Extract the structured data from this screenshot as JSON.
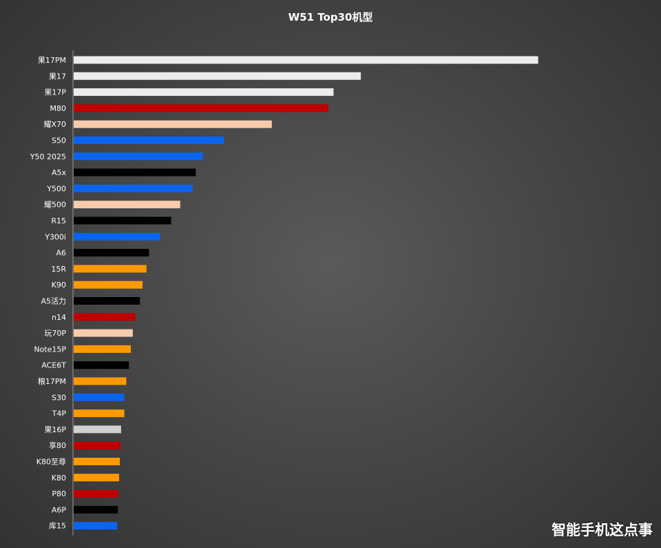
{
  "chart_data": {
    "type": "bar",
    "orientation": "horizontal",
    "title": "W51 Top30机型",
    "categories": [
      "果17PM",
      "果17",
      "果17P",
      "M80",
      "耀X70",
      "S50",
      "Y50 2025",
      "A5x",
      "Y500",
      "耀500",
      "R15",
      "Y300i",
      "A6",
      "15R",
      "K90",
      "A5活力",
      "n14",
      "玩70P",
      "Note15P",
      "ACE6T",
      "粮17PM",
      "S30",
      "T4P",
      "果16P",
      "享80",
      "K80至尊",
      "K80",
      "P80",
      "A6P",
      "库15"
    ],
    "values": [
      715,
      442,
      400,
      392,
      305,
      231,
      199,
      188,
      183,
      164,
      150,
      133,
      116,
      112,
      106,
      102,
      95,
      91,
      88,
      85,
      81,
      78,
      78,
      73,
      72,
      71,
      70,
      69,
      68,
      67
    ],
    "colors": [
      "#ececec",
      "#ececec",
      "#ececec",
      "#c00000",
      "#f8cbad",
      "#0a64f0",
      "#0a64f0",
      "#000000",
      "#0a64f0",
      "#f8cbad",
      "#000000",
      "#0a64f0",
      "#000000",
      "#ff9900",
      "#ff9900",
      "#000000",
      "#c00000",
      "#f8cbad",
      "#ff9900",
      "#000000",
      "#ff9900",
      "#0a64f0",
      "#ff9900",
      "#d0d0d0",
      "#c00000",
      "#ff9900",
      "#ff9900",
      "#c00000",
      "#000000",
      "#0a64f0"
    ],
    "xlim": [
      0,
      850
    ],
    "grid": false,
    "legend": "none"
  },
  "watermark": "智能手机这点事"
}
